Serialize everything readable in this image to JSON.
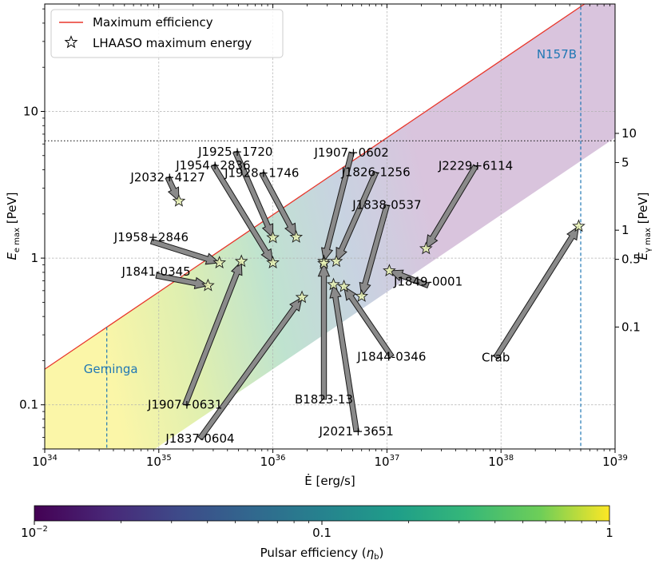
{
  "chart_data": {
    "type": "scatter",
    "title": "",
    "xlabel": "Ė [erg/s]",
    "ylabel_left": "E_e max [PeV]",
    "ylabel_right": "E_γ max [PeV]",
    "x_scale": "log",
    "y_scale": "log",
    "xlim": [
      1e+34,
      1e+39
    ],
    "ylim": [
      0.05,
      54
    ],
    "x_ticks": [
      {
        "value": 1e+34,
        "base": "10",
        "exp": "34"
      },
      {
        "value": 1e+35,
        "base": "10",
        "exp": "35"
      },
      {
        "value": 1e+36,
        "base": "10",
        "exp": "36"
      },
      {
        "value": 1e+37,
        "base": "10",
        "exp": "37"
      },
      {
        "value": 1e+38,
        "base": "10",
        "exp": "38"
      },
      {
        "value": 1e+39,
        "base": "10",
        "exp": "39"
      }
    ],
    "y_ticks_left": [
      {
        "value": 0.1,
        "label": "0.1"
      },
      {
        "value": 1,
        "label": "1"
      },
      {
        "value": 10,
        "label": "10"
      }
    ],
    "y_ticks_right": [
      {
        "value": 0.1,
        "label": "0.1"
      },
      {
        "value": 0.5,
        "label": "0.5"
      },
      {
        "value": 1,
        "label": "1"
      },
      {
        "value": 5,
        "label": "5"
      },
      {
        "value": 10,
        "label": "10"
      }
    ],
    "grid": true,
    "legend_position": "top-left",
    "legend": [
      {
        "label": "Maximum efficiency",
        "marker": "line",
        "color": "#e8372c"
      },
      {
        "label": "LHAASO maximum energy",
        "marker": "star",
        "color": "#000000"
      }
    ],
    "max_efficiency_line": {
      "x": [
        1e+34,
        5.4e+38
      ],
      "y": [
        0.175,
        54
      ]
    },
    "efficiency_band": {
      "eta_min": 0.01,
      "eta_max": 1
    },
    "horizontal_dotted_line": {
      "y": 6.3
    },
    "vertical_lines": [
      {
        "x": 3.5e+34,
        "label": "Geminga",
        "color": "#1f77b4"
      },
      {
        "x": 5e+38,
        "label": "N157B",
        "color": "#1f77b4"
      }
    ],
    "points": [
      {
        "name": "J2032+4127",
        "x": 1.5e+35,
        "y": 2.45,
        "label_x": 1.2e+35,
        "label_y": 3.55
      },
      {
        "name": "J1958+2846",
        "x": 3.4e+35,
        "y": 0.93,
        "label_x": 8.6e+34,
        "label_y": 1.3
      },
      {
        "name": "J1841-0345",
        "x": 2.7e+35,
        "y": 0.65,
        "label_x": 9.5e+34,
        "label_y": 0.76
      },
      {
        "name": "J1907+0631",
        "x": 5.3e+35,
        "y": 0.95,
        "label_x": 1.7e+35,
        "label_y": 0.1
      },
      {
        "name": "J1954+2836",
        "x": 1e+36,
        "y": 0.93,
        "label_x": 3e+35,
        "label_y": 4.3
      },
      {
        "name": "J1925+1720",
        "x": 1e+36,
        "y": 1.38,
        "label_x": 4.7e+35,
        "label_y": 5.3
      },
      {
        "name": "J1928+1746",
        "x": 1.6e+36,
        "y": 1.39,
        "label_x": 8e+35,
        "label_y": 3.8
      },
      {
        "name": "J1837-0604",
        "x": 1.8e+36,
        "y": 0.54,
        "label_x": 2.3e+35,
        "label_y": 0.059
      },
      {
        "name": "J1907+0602",
        "x": 2.8e+36,
        "y": 0.95,
        "label_x": 4.9e+36,
        "label_y": 5.25
      },
      {
        "name": "J1826-1256",
        "x": 3.6e+36,
        "y": 0.95,
        "label_x": 8e+36,
        "label_y": 3.85
      },
      {
        "name": "J1838-0537",
        "x": 6e+36,
        "y": 0.55,
        "label_x": 1e+37,
        "label_y": 2.3
      },
      {
        "name": "B1823-13",
        "x": 2.8e+36,
        "y": 0.92,
        "label_x": 2.8e+36,
        "label_y": 0.109
      },
      {
        "name": "J2021+3651",
        "x": 3.4e+36,
        "y": 0.66,
        "label_x": 5.4e+36,
        "label_y": 0.066
      },
      {
        "name": "J1844-0346",
        "x": 4.2e+36,
        "y": 0.64,
        "label_x": 1.1e+37,
        "label_y": 0.213
      },
      {
        "name": "J1849-0001",
        "x": 1.05e+37,
        "y": 0.82,
        "label_x": 2.3e+37,
        "label_y": 0.65
      },
      {
        "name": "J2229+6114",
        "x": 2.2e+37,
        "y": 1.16,
        "label_x": 6e+37,
        "label_y": 4.25
      },
      {
        "name": "Crab",
        "x": 4.8e+38,
        "y": 1.65,
        "label_x": 9e+37,
        "label_y": 0.21
      }
    ],
    "colorbar": {
      "label": "Pulsar efficiency (η_b)",
      "ticks": [
        {
          "value": 0.01,
          "base": "10",
          "exp": "−2"
        },
        {
          "value": 0.1,
          "label": "0.1"
        },
        {
          "value": 1,
          "label": "1"
        }
      ],
      "colormap": "viridis"
    }
  }
}
